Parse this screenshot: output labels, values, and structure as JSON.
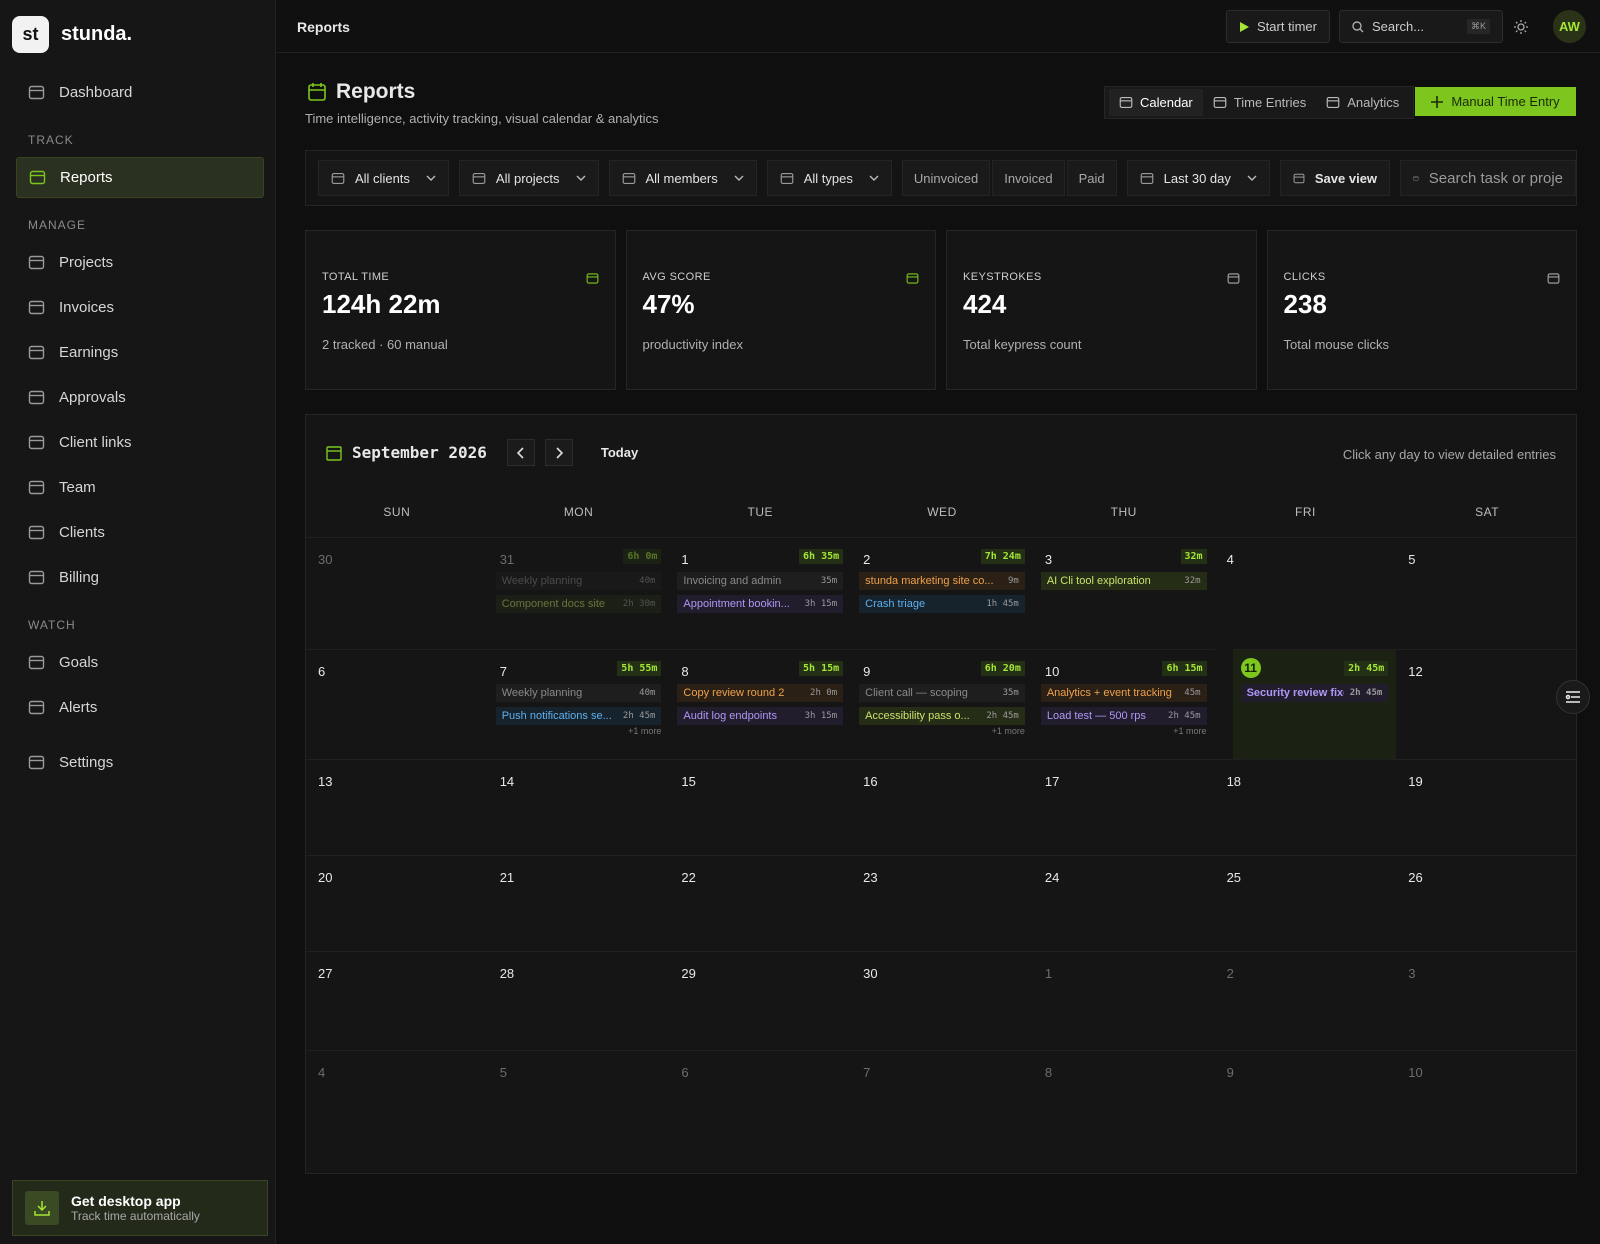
{
  "brand": {
    "logo": "st",
    "name": "stunda."
  },
  "topbar": {
    "title": "Reports",
    "start_timer": "Start timer",
    "search": "Search...",
    "shortcut": "⌘K",
    "avatar": "AW"
  },
  "sidebar": {
    "top": [
      {
        "label": "Dashboard"
      }
    ],
    "sections": [
      {
        "title": "TRACK",
        "items": [
          {
            "label": "Reports",
            "active": true
          }
        ]
      },
      {
        "title": "MANAGE",
        "items": [
          {
            "label": "Projects"
          },
          {
            "label": "Invoices"
          },
          {
            "label": "Earnings"
          },
          {
            "label": "Approvals"
          },
          {
            "label": "Client links"
          },
          {
            "label": "Team"
          },
          {
            "label": "Clients"
          },
          {
            "label": "Billing"
          }
        ]
      },
      {
        "title": "WATCH",
        "items": [
          {
            "label": "Goals"
          },
          {
            "label": "Alerts"
          }
        ]
      }
    ],
    "bottom": [
      {
        "label": "Settings"
      }
    ],
    "promo": {
      "title": "Get desktop app",
      "subtitle": "Track time automatically"
    }
  },
  "header": {
    "title": "Reports",
    "subtitle": "Time intelligence, activity tracking, visual calendar & analytics",
    "tabs": [
      {
        "label": "Calendar",
        "active": true
      },
      {
        "label": "Time Entries"
      },
      {
        "label": "Analytics"
      }
    ],
    "action": "Manual Time Entry"
  },
  "filters": {
    "dropdowns": [
      "All clients",
      "All projects",
      "All members",
      "All types"
    ],
    "toggles": [
      "Uninvoiced",
      "Invoiced",
      "Paid"
    ],
    "range": "Last 30 day",
    "save": "Save view",
    "search": "Search task or proje"
  },
  "stats": [
    {
      "label": "TOTAL TIME",
      "value": "124h 22m",
      "note": "2 tracked · 60 manual"
    },
    {
      "label": "AVG SCORE",
      "value": "47%",
      "note": "productivity index"
    },
    {
      "label": "KEYSTROKES",
      "value": "424",
      "note": "Total keypress count"
    },
    {
      "label": "CLICKS",
      "value": "238",
      "note": "Total mouse clicks"
    }
  ],
  "calendar": {
    "month": "September 2026",
    "today": "Today",
    "hint": "Click any day to view detailed entries",
    "weekdays": [
      "SUN",
      "MON",
      "TUE",
      "WED",
      "THU",
      "FRI",
      "SAT"
    ],
    "weeks": [
      [
        {
          "day": "30",
          "muted": true
        },
        {
          "day": "31",
          "muted": true,
          "total": "6h 0m",
          "entries": [
            {
              "name": "Weekly planning",
              "duration": "40m",
              "color": "gray"
            },
            {
              "name": "Component docs site",
              "duration": "2h 30m",
              "color": "lime"
            }
          ]
        },
        {
          "day": "1",
          "total": "6h 35m",
          "entries": [
            {
              "name": "Invoicing and admin",
              "duration": "35m",
              "color": "gray"
            },
            {
              "name": "Appointment bookin...",
              "duration": "3h 15m",
              "color": "purple"
            }
          ]
        },
        {
          "day": "2",
          "total": "7h 24m",
          "entries": [
            {
              "name": "stunda marketing site co...",
              "duration": "9m",
              "color": "orange"
            },
            {
              "name": "Crash triage",
              "duration": "1h 45m",
              "color": "blue"
            }
          ]
        },
        {
          "day": "3",
          "total": "32m",
          "entries": [
            {
              "name": "AI Cli tool exploration",
              "duration": "32m",
              "color": "lime"
            }
          ]
        },
        {
          "day": "4"
        },
        {
          "day": "5"
        }
      ],
      [
        {
          "day": "6"
        },
        {
          "day": "7",
          "total": "5h 55m",
          "entries": [
            {
              "name": "Weekly planning",
              "duration": "40m",
              "color": "gray"
            },
            {
              "name": "Push notifications se...",
              "duration": "2h 45m",
              "color": "blue"
            }
          ],
          "more": "+1 more"
        },
        {
          "day": "8",
          "total": "5h 15m",
          "entries": [
            {
              "name": "Copy review round 2",
              "duration": "2h 0m",
              "color": "orange"
            },
            {
              "name": "Audit log endpoints",
              "duration": "3h 15m",
              "color": "purple"
            }
          ]
        },
        {
          "day": "9",
          "total": "6h 20m",
          "entries": [
            {
              "name": "Client call — scoping",
              "duration": "35m",
              "color": "gray"
            },
            {
              "name": "Accessibility pass o...",
              "duration": "2h 45m",
              "color": "lime"
            }
          ],
          "more": "+1 more"
        },
        {
          "day": "10",
          "total": "6h 15m",
          "entries": [
            {
              "name": "Analytics + event tracking",
              "duration": "45m",
              "color": "orange"
            },
            {
              "name": "Load test — 500 rps",
              "duration": "2h 45m",
              "color": "purple"
            }
          ],
          "more": "+1 more"
        },
        {
          "day": "11",
          "today": true,
          "total": "2h 45m",
          "entries": [
            {
              "name": "Security review fixes",
              "duration": "2h 45m",
              "color": "purple"
            }
          ]
        },
        {
          "day": "12"
        }
      ],
      [
        {
          "day": "13"
        },
        {
          "day": "14"
        },
        {
          "day": "15"
        },
        {
          "day": "16"
        },
        {
          "day": "17"
        },
        {
          "day": "18"
        },
        {
          "day": "19"
        }
      ],
      [
        {
          "day": "20"
        },
        {
          "day": "21"
        },
        {
          "day": "22"
        },
        {
          "day": "23"
        },
        {
          "day": "24"
        },
        {
          "day": "25"
        },
        {
          "day": "26"
        }
      ],
      [
        {
          "day": "27"
        },
        {
          "day": "28"
        },
        {
          "day": "29"
        },
        {
          "day": "30"
        },
        {
          "day": "1",
          "muted": true
        },
        {
          "day": "2",
          "muted": true
        },
        {
          "day": "3",
          "muted": true
        }
      ],
      [
        {
          "day": "4",
          "muted": true
        },
        {
          "day": "5",
          "muted": true
        },
        {
          "day": "6",
          "muted": true
        },
        {
          "day": "7",
          "muted": true
        },
        {
          "day": "8",
          "muted": true
        },
        {
          "day": "9",
          "muted": true
        },
        {
          "day": "10",
          "muted": true
        }
      ]
    ]
  }
}
